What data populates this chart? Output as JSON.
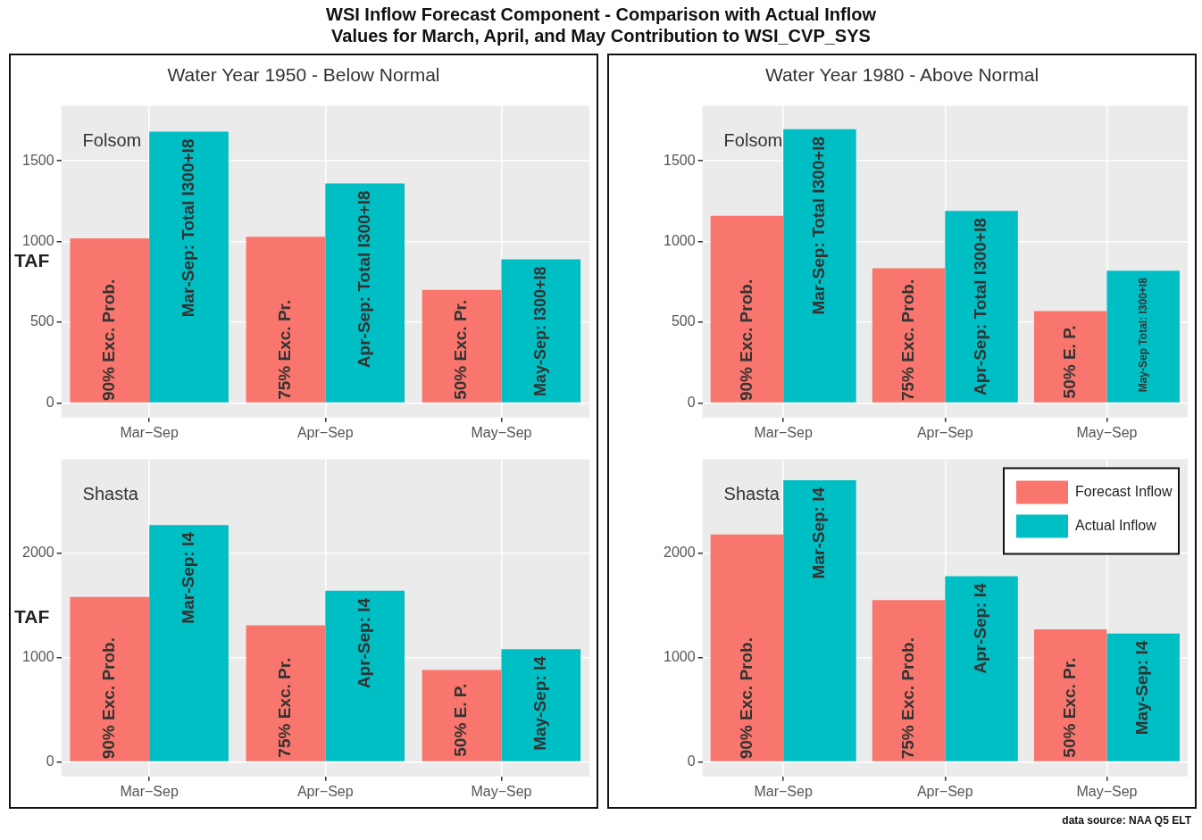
{
  "chart_data": [
    {
      "type": "bar",
      "title": "WSI Inflow Forecast Component - Comparison with Actual Inflow\nValues for March, April, and May Contribution to WSI_CVP_SYS",
      "subtitle": "Water Year 1950 - Below Normal",
      "ylabel": "TAF",
      "categories": [
        "Mar−Sep",
        "Apr−Sep",
        "May−Sep"
      ],
      "ylim": [
        -90,
        1840
      ],
      "yticks": [
        0,
        500,
        1000,
        1500
      ],
      "grid": true,
      "annotations": [
        "Folsom",
        {
          "text": "90% Exc. Prob.",
          "x": "Mar−Sep",
          "y": 390
        },
        {
          "text": "75% Exc. Pr.",
          "x": "Apr−Sep",
          "y": 330
        },
        {
          "text": "50% Exc. Pr.",
          "x": "May−Sep",
          "y": 330
        },
        {
          "text": "Mar-Sep: Total I300+I8",
          "x": "Mar−Sep",
          "y": 1680
        },
        {
          "text": "Apr-Sep: Total I300+I8",
          "x": "Apr−Sep",
          "y": 1360
        },
        {
          "text": "May-Sep: I300+I8",
          "x": "May−Sep",
          "y": 890
        }
      ],
      "series": [
        {
          "color": "#f8766d",
          "values": [
            1020,
            1030,
            700
          ]
        },
        {
          "color": "#00bfc4",
          "values": [
            1680,
            1360,
            890
          ]
        }
      ]
    },
    {
      "type": "bar",
      "subtitle": "Water Year 1980 - Above Normal",
      "categories": [
        "Mar−Sep",
        "Apr−Sep",
        "May−Sep"
      ],
      "ylim": [
        -90,
        1840
      ],
      "yticks": [
        0,
        500,
        1000,
        1500
      ],
      "grid": true,
      "annotations": [
        "Folsom",
        {
          "text": "90% Exc. Prob.",
          "x": "Mar−Sep",
          "y": 390
        },
        {
          "text": "75% Exc. Prob.",
          "x": "Apr−Sep",
          "y": 390
        },
        {
          "text": "50% E. P.",
          "x": "May−Sep",
          "y": 255
        },
        {
          "text": "Mar-Sep: Total I300+I8",
          "x": "Mar−Sep",
          "y": 1695
        },
        {
          "text": "Apr-Sep: Total I300+I8",
          "x": "Apr−Sep",
          "y": 1190
        },
        {
          "text": "May-Sep Total: I300+I8",
          "x": "May−Sep",
          "y": 820
        }
      ],
      "series": [
        {
          "color": "#f8766d",
          "values": [
            1160,
            835,
            570
          ]
        },
        {
          "color": "#00bfc4",
          "values": [
            1695,
            1190,
            820
          ]
        }
      ]
    },
    {
      "type": "bar",
      "ylabel": "TAF",
      "categories": [
        "Mar−Sep",
        "Apr−Sep",
        "May−Sep"
      ],
      "ylim": [
        -140,
        2900
      ],
      "yticks": [
        0,
        1000,
        2000
      ],
      "grid": true,
      "annotations": [
        "Shasta",
        {
          "text": "90% Exc. Prob.",
          "x": "Mar−Sep",
          "y": 610
        },
        {
          "text": "75% Exc. Pr.",
          "x": "Apr−Sep",
          "y": 520
        },
        {
          "text": "50% E. P.",
          "x": "May−Sep",
          "y": 400
        },
        {
          "text": "Mar-Sep: I4",
          "x": "Mar−Sep",
          "y": 2270
        },
        {
          "text": "Apr-Sep: I4",
          "x": "Apr−Sep",
          "y": 1640
        },
        {
          "text": "May-Sep: I4",
          "x": "May−Sep",
          "y": 1080
        }
      ],
      "series": [
        {
          "color": "#f8766d",
          "values": [
            1580,
            1310,
            880
          ]
        },
        {
          "color": "#00bfc4",
          "values": [
            2270,
            1640,
            1080
          ]
        }
      ]
    },
    {
      "type": "bar",
      "categories": [
        "Mar−Sep",
        "Apr−Sep",
        "May−Sep"
      ],
      "ylim": [
        -140,
        2900
      ],
      "yticks": [
        0,
        1000,
        2000
      ],
      "grid": true,
      "legend": "top right",
      "annotations": [
        "Shasta",
        {
          "text": "90% Exc. Prob.",
          "x": "Mar−Sep",
          "y": 610
        },
        {
          "text": "75% Exc. Prob.",
          "x": "Apr−Sep",
          "y": 610
        },
        {
          "text": "50% Exc. Pr.",
          "x": "May−Sep",
          "y": 520
        },
        {
          "text": "Mar-Sep: I4",
          "x": "Mar−Sep",
          "y": 2700
        },
        {
          "text": "Apr-Sep: I4",
          "x": "Apr−Sep",
          "y": 1780
        },
        {
          "text": "May-Sep: I4",
          "x": "May−Sep",
          "y": 1230
        },
        "data source: NAA Q5 ELT"
      ],
      "series": [
        {
          "name": "Forecast Inflow",
          "color": "#f8766d",
          "values": [
            2180,
            1550,
            1270
          ]
        },
        {
          "name": "Actual Inflow",
          "color": "#00bfc4",
          "values": [
            2700,
            1780,
            1230
          ]
        }
      ]
    }
  ]
}
